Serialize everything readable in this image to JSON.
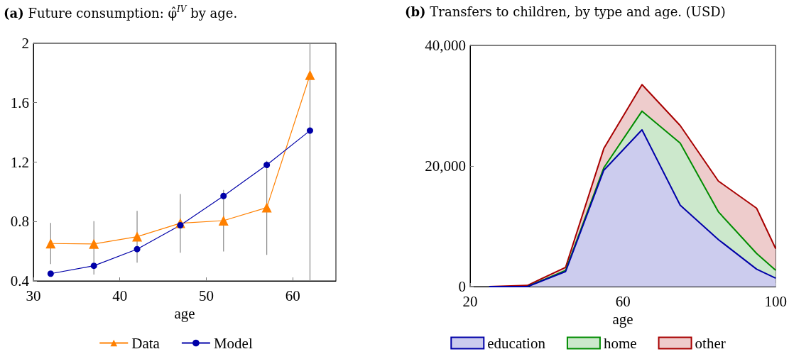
{
  "chart_data": [
    {
      "type": "line",
      "title": "(a) Future consumption: φ̂$^{IV}$ by age.",
      "xlabel": "age",
      "x": [
        32,
        37,
        42,
        47,
        52,
        57,
        62
      ],
      "series": [
        {
          "name": "Data",
          "color": "#ff8000",
          "marker": "triangle",
          "values": [
            0.652,
            0.649,
            0.698,
            0.789,
            0.806,
            0.894,
            1.786
          ],
          "errors": [
            [
              0.513,
              0.79
            ],
            [
              0.443,
              0.802
            ],
            [
              0.523,
              0.872
            ],
            [
              0.59,
              0.985
            ],
            [
              0.598,
              1.012
            ],
            [
              0.575,
              1.208
            ],
            [
              0.4,
              2
            ]
          ]
        },
        {
          "name": "Model",
          "color": "#0000a8",
          "marker": "circle",
          "values": [
            0.449,
            0.502,
            0.614,
            0.775,
            0.972,
            1.181,
            1.412
          ]
        }
      ],
      "xlim": [
        30,
        65
      ],
      "xticks": [
        30,
        40,
        50,
        60
      ],
      "ylim": [
        0.4,
        2
      ],
      "yticks": [
        0.4,
        0.8,
        1.2,
        1.6,
        2
      ],
      "grid": false,
      "legend": "bottom",
      "line_style": "solid"
    },
    {
      "type": "area",
      "title": "(b) Transfers to children, by type and age. (USD)",
      "xlabel": "age",
      "x": [
        25,
        35,
        45,
        55,
        65,
        75,
        85,
        95,
        100
      ],
      "stacked": true,
      "series": [
        {
          "name": "education",
          "color": "#0000a8",
          "values": [
            0,
            0,
            2500,
            19300,
            26000,
            13500,
            7800,
            2900,
            1400
          ]
        },
        {
          "name": "home",
          "color": "#008c00",
          "values": [
            0,
            0,
            200,
            400,
            3100,
            10300,
            4600,
            2600,
            1300
          ]
        },
        {
          "name": "other",
          "color": "#a80000",
          "values": [
            0,
            200,
            500,
            3200,
            4400,
            2900,
            5100,
            7500,
            3600
          ]
        }
      ],
      "xlim": [
        20,
        100
      ],
      "xticks": [
        20,
        60,
        100
      ],
      "ylim": [
        0,
        40000
      ],
      "yticks": [
        0,
        {
          "value": 20000,
          "label": "20,000"
        },
        {
          "value": 40000,
          "label": "40,000"
        }
      ],
      "grid": false,
      "legend": "bottom",
      "marker": "none",
      "line_style": "solid"
    }
  ]
}
